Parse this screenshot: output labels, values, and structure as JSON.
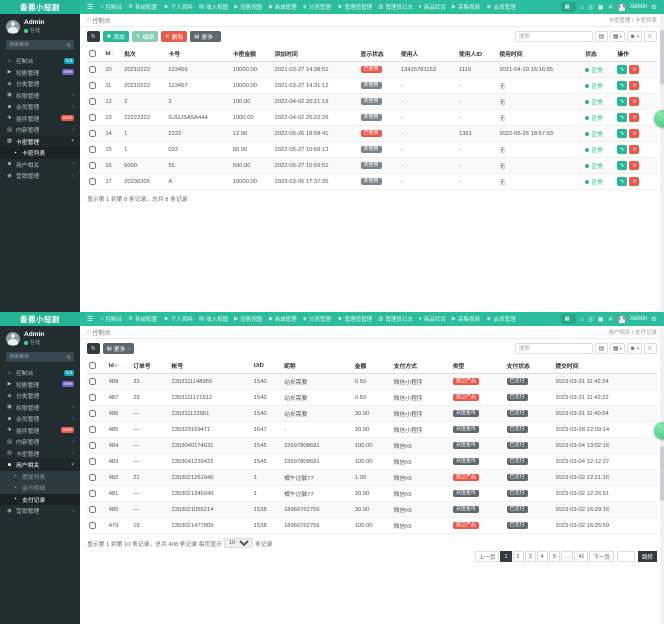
{
  "brand": "香蕉小短剧",
  "user": {
    "name": "Admin",
    "status_label": "在线"
  },
  "sidebar_search_placeholder": "搜索菜单",
  "colors": {
    "primary": "#2bbd9d",
    "sidebar_bg": "#222d32",
    "danger": "#e9594c",
    "success": "#26b99a"
  },
  "topnav": {
    "menu_icon": "☰",
    "items": [
      {
        "name": "console",
        "icon": "⌂",
        "label": "控制台"
      },
      {
        "name": "system-config",
        "icon": "⚙",
        "label": "系统配置"
      },
      {
        "name": "profile",
        "icon": "☻",
        "label": "个人资料"
      },
      {
        "name": "income-view",
        "icon": "▤",
        "label": "收入视图"
      },
      {
        "name": "series-view",
        "icon": "▶",
        "label": "短剧视图"
      },
      {
        "name": "mall",
        "icon": "◆",
        "label": "商城管理"
      },
      {
        "name": "category",
        "icon": "◈",
        "label": "分类管理"
      },
      {
        "name": "admin",
        "icon": "☻",
        "label": "管理员管理"
      },
      {
        "name": "admin-log",
        "icon": "▥",
        "label": "管理员日志"
      },
      {
        "name": "goods",
        "icon": "♦",
        "label": "商品栏目"
      },
      {
        "name": "collect",
        "icon": "▶",
        "label": "采集视频"
      },
      {
        "name": "member",
        "icon": "☻",
        "label": "会员管理"
      }
    ],
    "grid_icon": "▦",
    "right_icons": [
      {
        "name": "home-icon",
        "glyph": "⌂"
      },
      {
        "name": "notifications-icon",
        "glyph": "◎"
      },
      {
        "name": "fullscreen-icon",
        "glyph": "▣"
      },
      {
        "name": "close-icon",
        "glyph": "✕"
      }
    ],
    "admin_label": "Admin",
    "settings_icon": "⚙"
  },
  "table_controls": [
    {
      "name": "list-view-button",
      "icon_name": "list-icon",
      "glyph": "▤"
    },
    {
      "name": "columns-button",
      "icon_name": "columns-icon",
      "glyph": "▦",
      "caret": true
    },
    {
      "name": "export-button",
      "icon_name": "export-icon",
      "glyph": "☻",
      "caret": true
    },
    {
      "name": "search-button",
      "icon_name": "search-icon",
      "glyph": "⚲",
      "rot": true
    }
  ],
  "badge_styles": {
    "已使用": "bs-red",
    "未使用": "bs-gray",
    "独立产品": "bs-red",
    "充值金币": "bs-dark",
    "已支付": "bs-dark"
  },
  "panels": [
    {
      "sidebar_items": [
        {
          "name": "console",
          "icon": "⌂",
          "label": "控制台",
          "badge": {
            "text": "hot",
            "color": "#17a2b8"
          }
        },
        {
          "name": "series",
          "icon": "▶",
          "label": "短剧管理",
          "badge": {
            "text": "new",
            "color": "#7266ba"
          }
        },
        {
          "name": "category",
          "icon": "◈",
          "label": "分类管理"
        },
        {
          "name": "permission",
          "icon": "▣",
          "label": "权限管理",
          "chevron": "left"
        },
        {
          "name": "member",
          "icon": "☻",
          "label": "会员管理",
          "chevron": "left"
        },
        {
          "name": "plugin",
          "icon": "✚",
          "label": "插件管理",
          "badge": {
            "text": "new!",
            "color": "#e9594c"
          }
        },
        {
          "name": "content",
          "icon": "▤",
          "label": "内容管理",
          "chevron": "left"
        },
        {
          "name": "cardkey",
          "icon": "▥",
          "label": "卡密管理",
          "chevron": "down",
          "open": true,
          "sub": [
            {
              "name": "cardkey-list",
              "label": "卡密列表",
              "active": true
            }
          ]
        },
        {
          "name": "user-related",
          "icon": "☻",
          "label": "用户相关",
          "chevron": "left"
        },
        {
          "name": "marketing",
          "icon": "◉",
          "label": "营销管理",
          "chevron": "left"
        }
      ],
      "breadcrumb": {
        "home_icon": "⌂",
        "left": "控制台",
        "right": "卡密管理 / 卡密列表"
      },
      "toolbar": [
        {
          "name": "refresh",
          "icon": "↻",
          "icon_name": "refresh-icon",
          "style": "b-darkest"
        },
        {
          "name": "add",
          "label": "添加",
          "icon": "✚",
          "icon_name": "plus-icon",
          "style": "b-green"
        },
        {
          "name": "edit",
          "label": "编辑",
          "icon": "✎",
          "icon_name": "pencil-icon",
          "style": "b-lgreen"
        },
        {
          "name": "delete",
          "label": "删除",
          "icon": "✕",
          "icon_name": "trash-icon",
          "style": "b-red"
        },
        {
          "name": "more",
          "label": "更多",
          "icon": "▤",
          "icon_name": "more-icon",
          "style": "b-gray",
          "caret": true
        }
      ],
      "search_placeholder": "搜索",
      "table": {
        "columns": [
          {
            "type": "check"
          },
          {
            "key": "id",
            "label": "Id",
            "sort": "both"
          },
          {
            "key": "batch",
            "label": "批次"
          },
          {
            "key": "card-no",
            "label": "卡号"
          },
          {
            "key": "amount",
            "label": "卡密金额"
          },
          {
            "key": "add-time",
            "label": "添加时间"
          },
          {
            "key": "display-status",
            "label": "显示状态",
            "type": "badge"
          },
          {
            "key": "user",
            "label": "使用人"
          },
          {
            "key": "user-id",
            "label": "使用人ID"
          },
          {
            "key": "use-time",
            "label": "使用时间"
          },
          {
            "key": "status",
            "label": "状态",
            "type": "dot"
          },
          {
            "key": "ops",
            "label": "操作",
            "type": "actions"
          }
        ],
        "rows": [
          [
            "10",
            "20210222",
            "123456",
            "10000.00",
            "2021-03-27 14:38:51",
            "已使用",
            "13415781153",
            "1119",
            "2021-04-19 16:16:55",
            "正常",
            ""
          ],
          [
            "11",
            "20210222",
            "123457",
            "10000.00",
            "2021-03-27 14:31:12",
            "未使用",
            "-",
            "-",
            "无",
            "正常",
            ""
          ],
          [
            "12",
            "2",
            "3",
            "100.00",
            "2022-04-02 20:21:19",
            "未使用",
            "-",
            "-",
            "无",
            "正常",
            ""
          ],
          [
            "13",
            "22222222",
            "GJGJSA5A444",
            "1000.00",
            "2022-04-02 20:22:26",
            "未使用",
            "-",
            "-",
            "无",
            "正常",
            ""
          ],
          [
            "14",
            "1",
            "2222",
            "12.00",
            "2022-05-26 18:58:41",
            "已使用",
            "-",
            "1361",
            "2022-05-26 18:57:03",
            "正常",
            ""
          ],
          [
            "15",
            "1",
            "033",
            "60.00",
            "2022-05-27 10:59:13",
            "未使用",
            "-",
            "-",
            "无",
            "正常",
            ""
          ],
          [
            "16",
            "5000",
            "55",
            "500.00",
            "2022-05-27 10:59:51",
            "未使用",
            "-",
            "-",
            "无",
            "正常",
            ""
          ],
          [
            "17",
            "20230305",
            "A",
            "16000.00",
            "2023-03-05 17:37:35",
            "未使用",
            "-",
            "-",
            "无",
            "正常",
            ""
          ]
        ]
      },
      "footer": {
        "summary": "显示第 1 到第 8 条记录，总共 8 条记录"
      }
    },
    {
      "sidebar_items": [
        {
          "name": "console",
          "icon": "⌂",
          "label": "控制台",
          "badge": {
            "text": "hot",
            "color": "#17a2b8"
          }
        },
        {
          "name": "series",
          "icon": "▶",
          "label": "短剧管理",
          "badge": {
            "text": "new",
            "color": "#7266ba"
          }
        },
        {
          "name": "category",
          "icon": "◈",
          "label": "分类管理"
        },
        {
          "name": "permission",
          "icon": "▣",
          "label": "权限管理",
          "chevron": "left"
        },
        {
          "name": "member",
          "icon": "☻",
          "label": "会员管理",
          "chevron": "left"
        },
        {
          "name": "plugin",
          "icon": "✚",
          "label": "插件管理",
          "badge": {
            "text": "new!",
            "color": "#e9594c"
          }
        },
        {
          "name": "content",
          "icon": "▤",
          "label": "内容管理",
          "chevron": "left"
        },
        {
          "name": "cardkey",
          "icon": "▥",
          "label": "卡密管理",
          "chevron": "left"
        },
        {
          "name": "user-related",
          "icon": "☻",
          "label": "用户相关",
          "chevron": "down",
          "open": true,
          "sub": [
            {
              "name": "withdraw-list",
              "label": "提现列表"
            },
            {
              "name": "coin-detail",
              "label": "金币明细"
            },
            {
              "name": "pay-record",
              "label": "支付记录",
              "active": true
            }
          ]
        },
        {
          "name": "marketing",
          "icon": "◉",
          "label": "营销管理",
          "chevron": "left"
        }
      ],
      "breadcrumb": {
        "home_icon": "⌂",
        "left": "控制台",
        "right": "用户相关 / 支付记录"
      },
      "toolbar": [
        {
          "name": "refresh",
          "icon": "↻",
          "icon_name": "refresh-icon",
          "style": "b-darkest"
        },
        {
          "name": "more",
          "label": "更多",
          "icon": "▤",
          "icon_name": "more-icon",
          "style": "b-gray",
          "caret": true
        }
      ],
      "search_placeholder": "搜索",
      "table": {
        "columns": [
          {
            "type": "check"
          },
          {
            "key": "id",
            "label": "Id",
            "sort": "desc"
          },
          {
            "key": "order-no",
            "label": "订单号"
          },
          {
            "key": "account",
            "label": "帐号"
          },
          {
            "key": "uid",
            "label": "UID"
          },
          {
            "key": "nickname",
            "label": "昵称"
          },
          {
            "key": "amount",
            "label": "金额"
          },
          {
            "key": "pay-method",
            "label": "支付方式"
          },
          {
            "key": "type",
            "label": "类型",
            "type": "badge"
          },
          {
            "key": "pay-status",
            "label": "支付状态",
            "type": "badge"
          },
          {
            "key": "submit-time",
            "label": "提交时间"
          }
        ],
        "rows": [
          [
            "488",
            "33",
            "2303111148955",
            "1540",
            "站长需要",
            "0.50",
            "微信小程序",
            "独立产品",
            "已支付",
            "2023-03-31 11:42:24"
          ],
          [
            "487",
            "29",
            "2303111171912",
            "1540",
            "站长需要",
            "0.50",
            "微信小程序",
            "独立产品",
            "已支付",
            "2023-03-31 11:42:22"
          ],
          [
            "486",
            "—",
            "230311122961",
            "1540",
            "站长需要",
            "30.00",
            "微信小程序",
            "充值金币",
            "已支付",
            "2023-03-31 11:40:54"
          ],
          [
            "485",
            "—",
            "230329169471",
            "1647",
            "-",
            "30.00",
            "微信小程序",
            "充值金币",
            "已支付",
            "2023-03-28 22:09:14"
          ],
          [
            "484",
            "—",
            "2303040174631",
            "1545",
            "15697808691",
            "100.00",
            "微信h5",
            "充值金币",
            "已支付",
            "2023-03-04 13:02:16"
          ],
          [
            "483",
            "—",
            "2303041239422",
            "1545",
            "15697808691",
            "100.00",
            "微信h5",
            "充值金币",
            "已支付",
            "2023-03-04 12:12:27"
          ],
          [
            "482",
            "21",
            "2303021261946",
            "1",
            "橘午过敏77",
            "1.00",
            "微信h5",
            "独立产品",
            "已支付",
            "2023-03-02 12:21:16"
          ],
          [
            "481",
            "—",
            "2303021245949",
            "1",
            "橘午过敏77",
            "30.00",
            "微信h5",
            "充值金币",
            "已支付",
            "2023-03-02 12:26:51"
          ],
          [
            "480",
            "—",
            "2303021055214",
            "1538",
            "18960762756",
            "30.00",
            "微信h5",
            "充值金币",
            "已支付",
            "2023-03-02 16:29:16"
          ],
          [
            "479",
            "19",
            "2303021477809",
            "1538",
            "18960762756",
            "100.00",
            "微信h5",
            "独立产品",
            "已支付",
            "2023-03-02 16:25:59"
          ]
        ]
      },
      "footer": {
        "summary_prefix": "显示第 1 到第 10 条记录，总共 408 条记录 每页显示",
        "page_size": "10",
        "summary_suffix": "条记录"
      },
      "pagination": {
        "prev": "上一页",
        "pages": [
          "1",
          "2",
          "3",
          "4",
          "5",
          "...",
          "41"
        ],
        "active": "1",
        "next": "下一页",
        "jump_label": "跳转"
      }
    }
  ]
}
